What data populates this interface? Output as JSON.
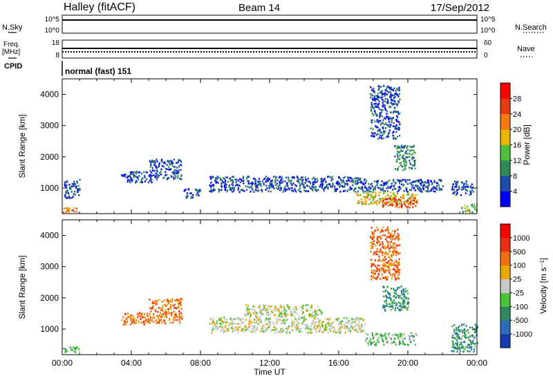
{
  "header": {
    "station": "Halley (fitACF)",
    "beam": "Beam 14",
    "date": "17/Sep/2012"
  },
  "side_labels": {
    "nsky": "N.Sky",
    "nsearch": "N.Search",
    "freq": "Freq.",
    "freq_unit": "[MHz]",
    "nave": "Nave",
    "cpid": "CPID",
    "cpid_value": "normal (fast) 151"
  },
  "strip_ticks": {
    "noise_top": "10^5",
    "noise_bottom": "10^0",
    "freq_top": "18",
    "freq_bottom": "8",
    "nave_top": "60",
    "nave_bottom": "0"
  },
  "chart_data": [
    {
      "type": "heatmap",
      "panel": "power",
      "ylabel": "Slant Range [km]",
      "ylim": [
        180,
        4500
      ],
      "y_ticks": [
        1000,
        2000,
        3000,
        4000
      ],
      "xlim_hours": [
        0,
        24
      ],
      "colorbar": {
        "label": "Power [dB]",
        "ticks": [
          "4",
          "8",
          "12",
          "16",
          "20",
          "24",
          "28"
        ],
        "colors": [
          "#0000ff",
          "#1e4aa8",
          "#2f8a58",
          "#4fbe3a",
          "#e8b800",
          "#f07a10",
          "#e23c10",
          "#ff0000"
        ]
      },
      "regions": [
        {
          "t": [
            0.0,
            0.9
          ],
          "r": [
            250,
            400
          ],
          "level": 5
        },
        {
          "t": [
            0.1,
            1.0
          ],
          "r": [
            700,
            1300
          ],
          "level": 1
        },
        {
          "t": [
            3.4,
            5.2
          ],
          "r": [
            1200,
            1550
          ],
          "level": 1
        },
        {
          "t": [
            5.0,
            6.9
          ],
          "r": [
            1300,
            1950
          ],
          "level": 1
        },
        {
          "t": [
            7.0,
            8.0
          ],
          "r": [
            700,
            1000
          ],
          "level": 1
        },
        {
          "t": [
            8.5,
            17.5
          ],
          "r": [
            900,
            1400
          ],
          "level": 1
        },
        {
          "t": [
            17.5,
            22.0
          ],
          "r": [
            900,
            1300
          ],
          "level": 1
        },
        {
          "t": [
            17.0,
            20.5
          ],
          "r": [
            500,
            900
          ],
          "level": 4
        },
        {
          "t": [
            18.5,
            20.5
          ],
          "r": [
            400,
            700
          ],
          "level": 6
        },
        {
          "t": [
            19.2,
            20.4
          ],
          "r": [
            1600,
            2400
          ],
          "level": 2
        },
        {
          "t": [
            17.8,
            19.5
          ],
          "r": [
            2600,
            4300
          ],
          "level": 1
        },
        {
          "t": [
            22.5,
            23.8
          ],
          "r": [
            800,
            1250
          ],
          "level": 1
        },
        {
          "t": [
            23.0,
            24.0
          ],
          "r": [
            250,
            500
          ],
          "level": 3
        }
      ]
    },
    {
      "type": "heatmap",
      "panel": "velocity",
      "ylabel": "Slant Range [km]",
      "ylim": [
        180,
        4500
      ],
      "y_ticks": [
        1000,
        2000,
        3000,
        4000
      ],
      "xlim_hours": [
        0,
        24
      ],
      "xlabel": "Time UT",
      "x_ticks": [
        "00:00",
        "04:00",
        "08:00",
        "12:00",
        "16:00",
        "20:00",
        "00:00"
      ],
      "colorbar": {
        "label": "Velocity [m s⁻¹]",
        "ticks": [
          "1000",
          "500",
          "100",
          "25",
          "-25",
          "-100",
          "-500",
          "-1000"
        ],
        "colors": [
          "#1a3ab0",
          "#2a6fb8",
          "#2e8a5e",
          "#4cc23a",
          "#c8c8c8",
          "#e8a800",
          "#f06e10",
          "#e83010",
          "#ff0000"
        ]
      },
      "regions": [
        {
          "t": [
            0.0,
            1.0
          ],
          "r": [
            250,
            450
          ],
          "level": 3
        },
        {
          "t": [
            3.4,
            5.2
          ],
          "r": [
            1150,
            1550
          ],
          "level": 6
        },
        {
          "t": [
            5.0,
            6.9
          ],
          "r": [
            1200,
            2000
          ],
          "level": 6
        },
        {
          "t": [
            8.5,
            17.5
          ],
          "r": [
            900,
            1400
          ],
          "level": 4
        },
        {
          "t": [
            10.5,
            15.0
          ],
          "r": [
            1400,
            1800
          ],
          "level": 4
        },
        {
          "t": [
            17.5,
            20.5
          ],
          "r": [
            500,
            900
          ],
          "level": 3
        },
        {
          "t": [
            18.5,
            20.0
          ],
          "r": [
            1600,
            2400
          ],
          "level": 2
        },
        {
          "t": [
            17.8,
            19.5
          ],
          "r": [
            2600,
            4300
          ],
          "level": 6
        },
        {
          "t": [
            22.5,
            24.0
          ],
          "r": [
            300,
            1200
          ],
          "level": 2
        }
      ]
    }
  ]
}
